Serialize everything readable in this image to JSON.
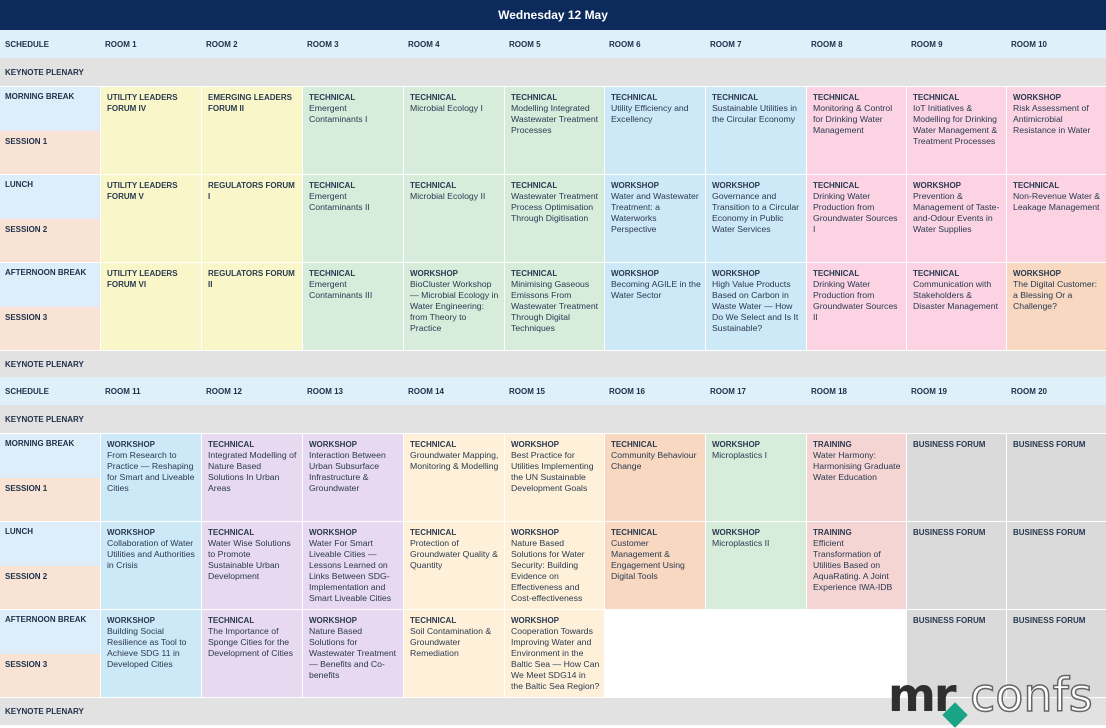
{
  "title": "Wednesday 12 May",
  "block1": {
    "header": [
      "SCHEDULE",
      "ROOM 1",
      "ROOM 2",
      "ROOM 3",
      "ROOM 4",
      "ROOM 5",
      "ROOM 6",
      "ROOM 7",
      "ROOM 8",
      "ROOM 9",
      "ROOM 10"
    ],
    "keynote_top": "KEYNOTE PLENARY",
    "keynote_bottom": "KEYNOTE PLENARY",
    "labels": [
      "MORNING BREAK",
      "SESSION 1",
      "LUNCH",
      "SESSION 2",
      "AFTERNOON BREAK",
      "SESSION 3"
    ],
    "sessions": [
      [
        {
          "t": "UTILITY LEADERS FORUM IV",
          "b": "",
          "color": "yellow"
        },
        {
          "t": "EMERGING LEADERS FORUM II",
          "b": "",
          "color": "yellow"
        },
        {
          "t": "TECHNICAL",
          "b": "Emergent Contaminants I",
          "color": "green"
        },
        {
          "t": "TECHNICAL",
          "b": "Microbial Ecology I",
          "color": "green"
        },
        {
          "t": "TECHNICAL",
          "b": "Modelling Integrated Wastewater Treatment Processes",
          "color": "green"
        },
        {
          "t": "TECHNICAL",
          "b": "Utility Efficiency and Excellency",
          "color": "lblue"
        },
        {
          "t": "TECHNICAL",
          "b": "Sustainable Utilities in the Circular Economy",
          "color": "lblue"
        },
        {
          "t": "TECHNICAL",
          "b": "Monitoring & Control for Drinking Water Management",
          "color": "pink"
        },
        {
          "t": "TECHNICAL",
          "b": "IoT Initiatives & Modelling for Drinking Water Management & Treatment Processes",
          "color": "pink"
        },
        {
          "t": "WORKSHOP",
          "b": "Risk Assessment of Antimicrobial Resistance in Water",
          "color": "pink"
        }
      ],
      [
        {
          "t": "UTILITY LEADERS FORUM V",
          "b": "",
          "color": "yellow"
        },
        {
          "t": "REGULATORS FORUM I",
          "b": "",
          "color": "yellow"
        },
        {
          "t": "TECHNICAL",
          "b": "Emergent Contaminants II",
          "color": "green"
        },
        {
          "t": "TECHNICAL",
          "b": "Microbial Ecology II",
          "color": "green"
        },
        {
          "t": "TECHNICAL",
          "b": "Wastewater Treatment Process Optimisation Through Digitisation",
          "color": "green"
        },
        {
          "t": "WORKSHOP",
          "b": "Water and Wastewater Treatment: a Waterworks Perspective",
          "color": "lblue"
        },
        {
          "t": "WORKSHOP",
          "b": "Governance and Transition to a Circular Economy in Public Water Services",
          "color": "lblue"
        },
        {
          "t": "TECHNICAL",
          "b": "Drinking Water Production from Groundwater Sources I",
          "color": "pink"
        },
        {
          "t": "WORKSHOP",
          "b": "Prevention & Management of Taste-and-Odour Events in Water Supplies",
          "color": "pink"
        },
        {
          "t": "TECHNICAL",
          "b": "Non-Revenue Water & Leakage Management",
          "color": "pink"
        }
      ],
      [
        {
          "t": "UTILITY LEADERS FORUM VI",
          "b": "",
          "color": "yellow"
        },
        {
          "t": "REGULATORS FORUM II",
          "b": "",
          "color": "yellow"
        },
        {
          "t": "TECHNICAL",
          "b": "Emergent Contaminants III",
          "color": "green"
        },
        {
          "t": "WORKSHOP",
          "b": "BioCluster Workshop — Microbial Ecology in Water Engineering: from Theory to Practice",
          "color": "green"
        },
        {
          "t": "TECHNICAL",
          "b": "Minimising Gaseous Emissons From Wastewater Treatment Through Digital Techniques",
          "color": "green"
        },
        {
          "t": "WORKSHOP",
          "b": "Becoming AGILE in the Water Sector",
          "color": "lblue"
        },
        {
          "t": "WORKSHOP",
          "b": "High Value Products Based on Carbon in Waste Water — How Do We Select and Is It Sustainable?",
          "color": "lblue"
        },
        {
          "t": "TECHNICAL",
          "b": "Drinking Water Production from Groundwater Sources II",
          "color": "pink"
        },
        {
          "t": "TECHNICAL",
          "b": "Communication with Stakeholders & Disaster Management",
          "color": "pink"
        },
        {
          "t": "WORKSHOP",
          "b": "The Digital Customer: a Blessing Or a Challenge?",
          "color": "orange"
        }
      ]
    ]
  },
  "block2": {
    "header": [
      "SCHEDULE",
      "ROOM 11",
      "ROOM 12",
      "ROOM 13",
      "ROOM 14",
      "ROOM 15",
      "ROOM 16",
      "ROOM 17",
      "ROOM 18",
      "ROOM 19",
      "ROOM 20"
    ],
    "keynote_top": "KEYNOTE PLENARY",
    "keynote_bottom": "KEYNOTE PLENARY",
    "labels": [
      "MORNING BREAK",
      "SESSION 1",
      "LUNCH",
      "SESSION 2",
      "AFTERNOON BREAK",
      "SESSION 3"
    ],
    "sessions": [
      [
        {
          "t": "WORKSHOP",
          "b": "From Research to Practice — Reshaping for Smart and Liveable Cities",
          "color": "lblue"
        },
        {
          "t": "TECHNICAL",
          "b": "Integrated Modelling of Nature Based Solutions In Urban Areas",
          "color": "purple"
        },
        {
          "t": "WORKSHOP",
          "b": "Interaction Between Urban Subsurface Infrastructure & Groundwater",
          "color": "purple"
        },
        {
          "t": "TECHNICAL",
          "b": "Groundwater Mapping, Monitoring & Modelling",
          "color": "cream"
        },
        {
          "t": "WORKSHOP",
          "b": "Best Practice for Utilities Implementing the UN Sustainable Development Goals",
          "color": "cream"
        },
        {
          "t": "TECHNICAL",
          "b": "Community Behaviour Change",
          "color": "orange"
        },
        {
          "t": "WORKSHOP",
          "b": "Microplastics I",
          "color": "green"
        },
        {
          "t": "TRAINING",
          "b": "Water Harmony: Harmonising Graduate Water Education",
          "color": "salmon"
        },
        {
          "t": "BUSINESS FORUM",
          "b": "",
          "color": "grey"
        },
        {
          "t": "BUSINESS FORUM",
          "b": "",
          "color": "grey"
        }
      ],
      [
        {
          "t": "WORKSHOP",
          "b": "Collaboration of Water Utilities and Authorities in Crisis",
          "color": "lblue"
        },
        {
          "t": "TECHNICAL",
          "b": "Water Wise Solutions to Promote Sustainable Urban Development",
          "color": "purple"
        },
        {
          "t": "WORKSHOP",
          "b": "Water For Smart Liveable Cities — Lessons Learned on Links Between SDG-Implementation and Smart Liveable Cities",
          "color": "purple"
        },
        {
          "t": "TECHNICAL",
          "b": "Protection of Groundwater Quality & Quantity",
          "color": "cream"
        },
        {
          "t": "WORKSHOP",
          "b": "Nature Based Solutions for Water Security: Building Evidence on Effectiveness and Cost-effectiveness",
          "color": "cream"
        },
        {
          "t": "TECHNICAL",
          "b": "Customer Management & Engagement Using Digital Tools",
          "color": "orange"
        },
        {
          "t": "WORKSHOP",
          "b": "Microplastics II",
          "color": "green"
        },
        {
          "t": "TRAINING",
          "b": "Efficient Transformation of Utilities Based on AquaRating. A Joint Experience IWA-IDB",
          "color": "salmon"
        },
        {
          "t": "BUSINESS FORUM",
          "b": "",
          "color": "grey"
        },
        {
          "t": "BUSINESS FORUM",
          "b": "",
          "color": "grey"
        }
      ],
      [
        {
          "t": "WORKSHOP",
          "b": "Building Social Resilience as Tool to Achieve SDG 11 in Developed Cities",
          "color": "lblue"
        },
        {
          "t": "TECHNICAL",
          "b": "The Importance of Sponge Cities for the Development of Cities",
          "color": "purple"
        },
        {
          "t": "WORKSHOP",
          "b": "Nature Based Solutions for Wastewater Treatment — Benefits and Co-benefits",
          "color": "purple"
        },
        {
          "t": "TECHNICAL",
          "b": "Soil Contamination & Groundwater Remediation",
          "color": "cream"
        },
        {
          "t": "WORKSHOP",
          "b": "Cooperation Towards Improving Water and Environment in the Baltic Sea — How Can We Meet SDG14 in the Baltic Sea Region?",
          "color": "cream"
        },
        {
          "t": "",
          "b": "",
          "color": "white"
        },
        {
          "t": "",
          "b": "",
          "color": "white"
        },
        {
          "t": "",
          "b": "",
          "color": "white"
        },
        {
          "t": "BUSINESS FORUM",
          "b": "",
          "color": "grey"
        },
        {
          "t": "BUSINESS FORUM",
          "b": "",
          "color": "grey"
        }
      ]
    ]
  },
  "logo": {
    "mr": "mr",
    "confs": "confs"
  }
}
